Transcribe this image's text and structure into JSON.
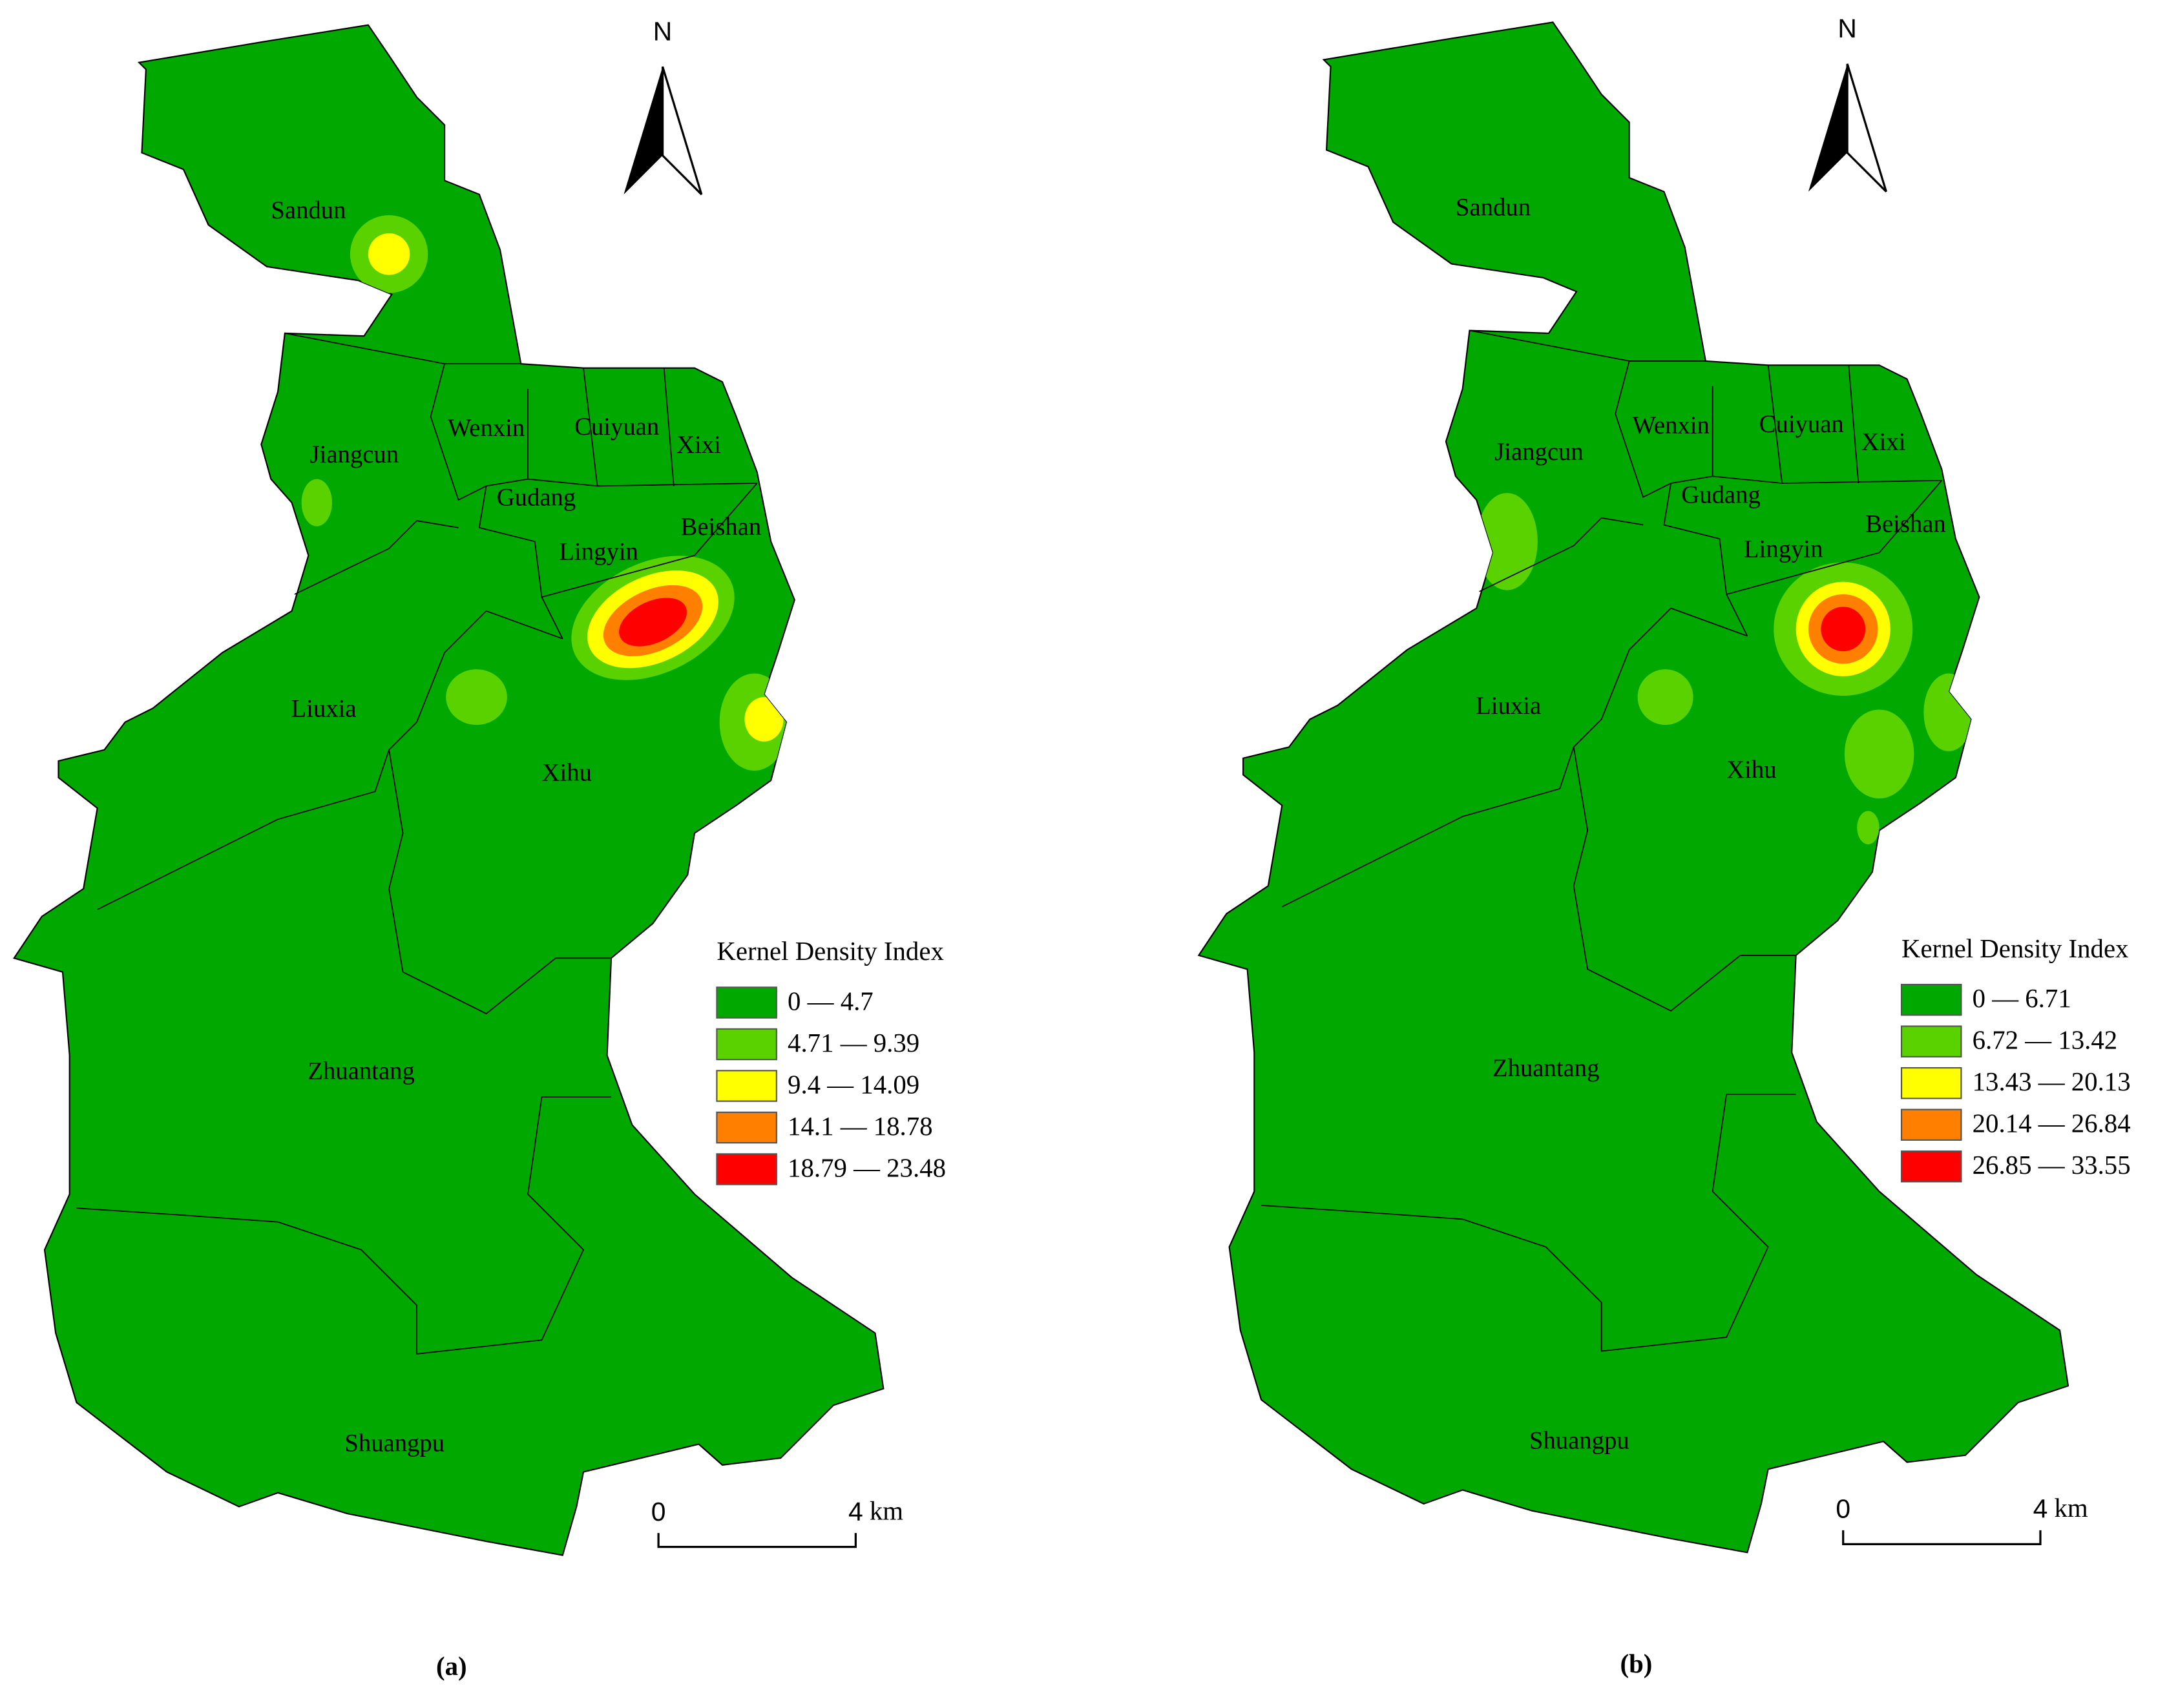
{
  "panels": [
    {
      "label": "(a)",
      "north": "N",
      "districts": [
        "Sandun",
        "Jiangcun",
        "Wenxin",
        "Cuiyuan",
        "Xixi",
        "Gudang",
        "Lingyin",
        "Beishan",
        "Liuxia",
        "Xihu",
        "Zhuantang",
        "Shuangpu"
      ],
      "legend": {
        "title": "Kernel Density Index",
        "items": [
          "0 — 4.7",
          "4.71 — 9.39",
          "9.4 — 14.09",
          "14.1 — 18.78",
          "18.79 — 23.48"
        ],
        "colors": [
          "#00a800",
          "#5ad200",
          "#ffff00",
          "#ff8000",
          "#ff0000"
        ]
      },
      "scale": {
        "start": "0",
        "end": "4",
        "unit": "km"
      }
    },
    {
      "label": "(b)",
      "north": "N",
      "districts": [
        "Sandun",
        "Jiangcun",
        "Wenxin",
        "Cuiyuan",
        "Xixi",
        "Gudang",
        "Lingyin",
        "Beishan",
        "Liuxia",
        "Xihu",
        "Zhuantang",
        "Shuangpu"
      ],
      "legend": {
        "title": "Kernel Density Index",
        "items": [
          "0 — 6.71",
          "6.72 — 13.42",
          "13.43 — 20.13",
          "20.14 — 26.84",
          "26.85 — 33.55"
        ],
        "colors": [
          "#00a800",
          "#5ad200",
          "#ffff00",
          "#ff8000",
          "#ff0000"
        ]
      },
      "scale": {
        "start": "0",
        "end": "4",
        "unit": "km"
      }
    }
  ]
}
